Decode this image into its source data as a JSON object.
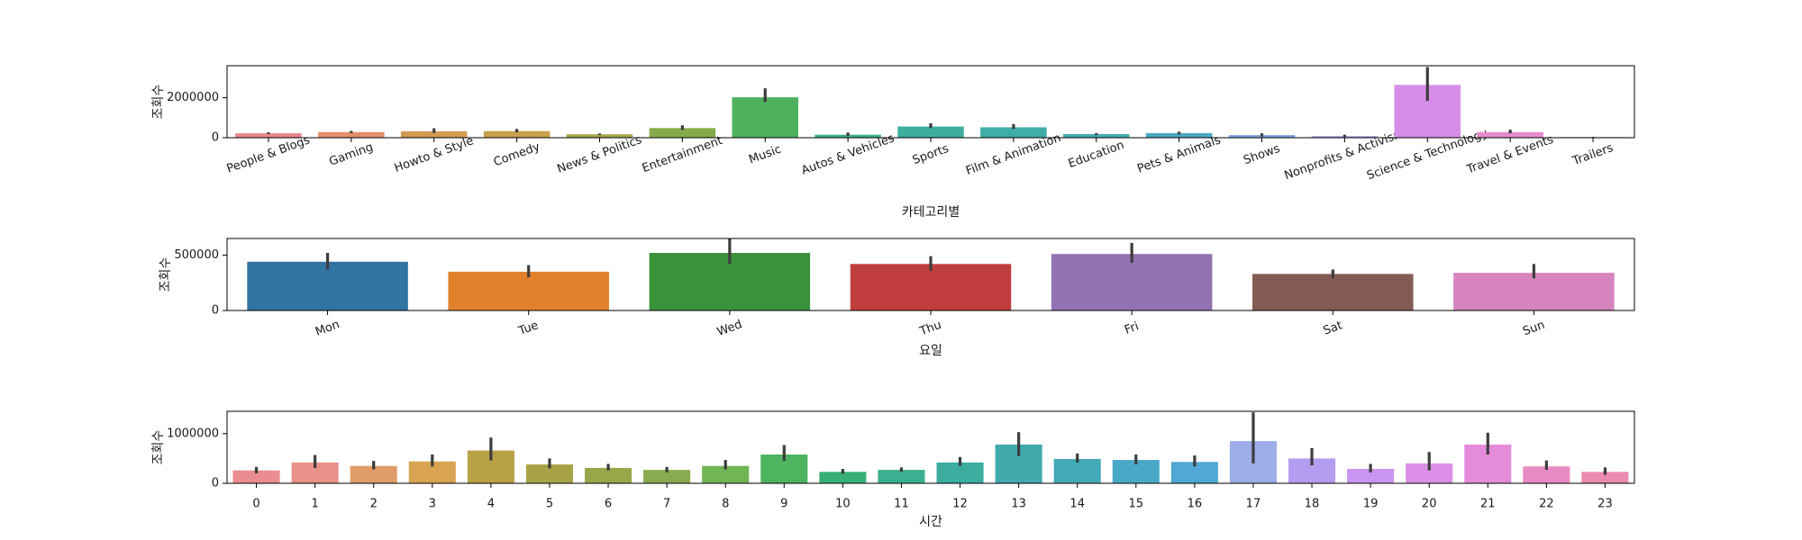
{
  "chart_data": [
    {
      "type": "bar",
      "xlabel": "카테고리별",
      "ylabel": "조회수",
      "ylim": [
        0,
        3600000
      ],
      "yticks": [
        0,
        2000000
      ],
      "xtick_rotation": -20,
      "categories": [
        "People & Blogs",
        "Gaming",
        "Howto & Style",
        "Comedy",
        "News & Politics",
        "Entertainment",
        "Music",
        "Autos & Vehicles",
        "Sports",
        "Film & Animation",
        "Education",
        "Pets & Animals",
        "Shows",
        "Nonprofits & Activism",
        "Science & Technology",
        "Travel & Events",
        "Trailers"
      ],
      "values": [
        220000,
        280000,
        320000,
        330000,
        170000,
        480000,
        2020000,
        150000,
        560000,
        520000,
        180000,
        230000,
        130000,
        80000,
        2640000,
        280000,
        30000
      ],
      "error_low": [
        180000,
        230000,
        240000,
        270000,
        130000,
        390000,
        1780000,
        90000,
        480000,
        440000,
        130000,
        170000,
        60000,
        40000,
        1840000,
        220000,
        20000
      ],
      "error_high": [
        270000,
        340000,
        470000,
        440000,
        210000,
        620000,
        2470000,
        260000,
        720000,
        680000,
        230000,
        300000,
        220000,
        150000,
        3530000,
        400000,
        40000
      ],
      "colors": [
        "#e8868d",
        "#e58f6c",
        "#d49b52",
        "#c7a14c",
        "#a6a845",
        "#86ab4b",
        "#4fb15c",
        "#3eb08f",
        "#3daf9f",
        "#40aca8",
        "#44acb4",
        "#4aa9c3",
        "#7da6e0",
        "#a69ee9",
        "#d68de7",
        "#e78bcf",
        "#ea88b1"
      ]
    },
    {
      "type": "bar",
      "xlabel": "요일",
      "ylabel": "조회수",
      "ylim": [
        0,
        650000
      ],
      "yticks": [
        0,
        500000
      ],
      "xtick_rotation": -20,
      "categories": [
        "Mon",
        "Tue",
        "Wed",
        "Thu",
        "Fri",
        "Sat",
        "Sun"
      ],
      "values": [
        440000,
        350000,
        520000,
        420000,
        510000,
        330000,
        340000
      ],
      "error_low": [
        370000,
        300000,
        420000,
        360000,
        430000,
        290000,
        290000
      ],
      "error_high": [
        520000,
        410000,
        650000,
        490000,
        610000,
        370000,
        420000
      ],
      "colors": [
        "#3274a1",
        "#e1812c",
        "#3a923a",
        "#c03d3e",
        "#9372b2",
        "#845b53",
        "#d684bd"
      ]
    },
    {
      "type": "bar",
      "xlabel": "시간",
      "ylabel": "조회수",
      "ylim": [
        0,
        1450000
      ],
      "yticks": [
        0,
        1000000
      ],
      "xtick_rotation": 0,
      "categories": [
        "0",
        "1",
        "2",
        "3",
        "4",
        "5",
        "6",
        "7",
        "8",
        "9",
        "10",
        "11",
        "12",
        "13",
        "14",
        "15",
        "16",
        "17",
        "18",
        "19",
        "20",
        "21",
        "22",
        "23"
      ],
      "values": [
        260000,
        420000,
        350000,
        440000,
        660000,
        380000,
        310000,
        270000,
        350000,
        580000,
        230000,
        270000,
        420000,
        780000,
        490000,
        470000,
        430000,
        850000,
        500000,
        290000,
        400000,
        780000,
        340000,
        230000
      ],
      "error_low": [
        200000,
        310000,
        280000,
        340000,
        460000,
        300000,
        260000,
        220000,
        280000,
        450000,
        190000,
        230000,
        350000,
        550000,
        420000,
        380000,
        340000,
        400000,
        360000,
        220000,
        260000,
        580000,
        270000,
        170000
      ],
      "error_high": [
        330000,
        570000,
        450000,
        580000,
        920000,
        500000,
        390000,
        330000,
        470000,
        770000,
        290000,
        320000,
        530000,
        1030000,
        600000,
        580000,
        560000,
        1430000,
        710000,
        390000,
        630000,
        1020000,
        460000,
        320000
      ],
      "colors": [
        "#ea8d90",
        "#e9908a",
        "#e19d67",
        "#d8a352",
        "#b9a146",
        "#a8a347",
        "#97a74a",
        "#88ac4f",
        "#72b554",
        "#4fb460",
        "#39af78",
        "#3caf90",
        "#3cad9f",
        "#40aaac",
        "#43aab7",
        "#4aa9c7",
        "#52a8d4",
        "#9daee8",
        "#b39df0",
        "#c895f0",
        "#dc8fe6",
        "#e48bd9",
        "#e88bc5",
        "#e98aae"
      ]
    }
  ]
}
